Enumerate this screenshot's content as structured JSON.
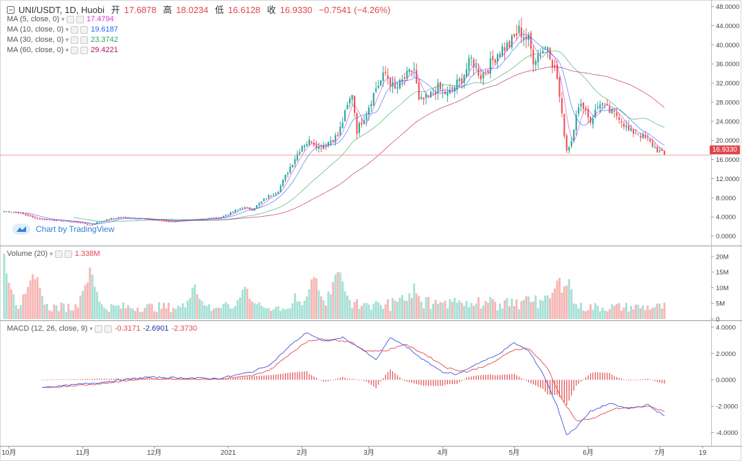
{
  "header": {
    "symbol": "UNI/USDT, 1D, Huobi",
    "open_label": "开",
    "open": "17.6878",
    "high_label": "高",
    "high": "18.0234",
    "low_label": "低",
    "low": "16.6128",
    "close_label": "收",
    "close": "16.9330",
    "change": "−0.7541 (−4.26%)"
  },
  "ma_legend": [
    {
      "label": "MA (5, close, 0)",
      "value": "17.4794",
      "color": "#d43ad1"
    },
    {
      "label": "MA (10, close, 0)",
      "value": "19.6187",
      "color": "#2962ff"
    },
    {
      "label": "MA (30, close, 0)",
      "value": "23.3742",
      "color": "#26a65b"
    },
    {
      "label": "MA (60, close, 0)",
      "value": "29.4221",
      "color": "#b0125e"
    }
  ],
  "volume_legend": {
    "label": "Volume (20)",
    "value": "1.338M",
    "color": "#e0474c"
  },
  "macd_legend": {
    "label": "MACD (12, 26, close, 9)",
    "values": [
      "-0.3171",
      "-2.6901",
      "-2.3730"
    ],
    "colors": [
      "#e0474c",
      "#2233aa",
      "#e0474c"
    ]
  },
  "watermark": "Chart by TradingView",
  "last_price_tag": "16.9330",
  "colors": {
    "up": "#26a69a",
    "down": "#ef5350",
    "vol_up": "#a7e0d6",
    "vol_down": "#f5b7b5",
    "macd_line": "#3f51d8",
    "signal_line": "#e0474c",
    "hist": "#e0474c",
    "price_line": "#e88c8f"
  },
  "chart_data": [
    {
      "type": "candlestick",
      "title": "UNI/USDT, 1D, Huobi",
      "y_ticks": [
        "48.0000",
        "44.0000",
        "40.0000",
        "36.0000",
        "32.0000",
        "28.0000",
        "24.0000",
        "20.0000",
        "16.0000",
        "12.0000",
        "8.0000",
        "4.0000",
        "0.0000"
      ],
      "ylim": [
        -2,
        48.8
      ],
      "x_ticks": [
        "10月",
        "11月",
        "12月",
        "2021",
        "2月",
        "3月",
        "4月",
        "5月",
        "6月",
        "7月",
        "19"
      ],
      "x_ticks_day_index": [
        2,
        33,
        63,
        94,
        125,
        153,
        184,
        214,
        245,
        275,
        293
      ],
      "last_close": 16.933,
      "close_keypoints": [
        [
          0,
          5.2
        ],
        [
          6,
          4.9
        ],
        [
          14,
          3.6
        ],
        [
          24,
          3.2
        ],
        [
          33,
          2.7
        ],
        [
          36,
          2.2
        ],
        [
          40,
          3.1
        ],
        [
          48,
          3.9
        ],
        [
          58,
          3.6
        ],
        [
          70,
          3.0
        ],
        [
          82,
          3.6
        ],
        [
          90,
          3.8
        ],
        [
          95,
          4.8
        ],
        [
          100,
          6.0
        ],
        [
          104,
          5.5
        ],
        [
          110,
          8.0
        ],
        [
          115,
          9.5
        ],
        [
          120,
          14.5
        ],
        [
          125,
          19.0
        ],
        [
          129,
          20.0
        ],
        [
          132,
          18.5
        ],
        [
          140,
          21.0
        ],
        [
          144,
          27.0
        ],
        [
          146,
          30.0
        ],
        [
          148,
          22.0
        ],
        [
          152,
          26.0
        ],
        [
          156,
          31.0
        ],
        [
          160,
          34.0
        ],
        [
          164,
          30.5
        ],
        [
          168,
          33.0
        ],
        [
          172,
          35.0
        ],
        [
          174,
          28.0
        ],
        [
          178,
          29.0
        ],
        [
          182,
          31.0
        ],
        [
          186,
          29.5
        ],
        [
          192,
          33.0
        ],
        [
          196,
          37.0
        ],
        [
          200,
          33.5
        ],
        [
          204,
          36.0
        ],
        [
          208,
          39.0
        ],
        [
          212,
          40.0
        ],
        [
          216,
          43.0
        ],
        [
          220,
          41.0
        ],
        [
          222,
          37.0
        ],
        [
          228,
          40.0
        ],
        [
          232,
          33.0
        ],
        [
          234,
          25.0
        ],
        [
          236,
          18.0
        ],
        [
          238,
          20.0
        ],
        [
          240,
          26.0
        ],
        [
          243,
          27.5
        ],
        [
          246,
          24.0
        ],
        [
          250,
          28.0
        ],
        [
          254,
          26.0
        ],
        [
          258,
          25.0
        ],
        [
          262,
          22.0
        ],
        [
          266,
          21.5
        ],
        [
          270,
          20.0
        ],
        [
          274,
          18.0
        ],
        [
          277,
          16.9
        ]
      ]
    },
    {
      "type": "bar",
      "title": "Volume (20)",
      "y_ticks": [
        "20M",
        "15M",
        "10M",
        "5M",
        "0"
      ],
      "ylim": [
        0,
        21.5
      ],
      "unit": "M",
      "peak_days": [
        [
          0,
          21
        ],
        [
          12,
          19
        ],
        [
          36,
          18
        ],
        [
          80,
          12
        ],
        [
          101,
          12
        ],
        [
          130,
          13
        ],
        [
          140,
          16
        ],
        [
          172,
          9
        ],
        [
          232,
          13
        ],
        [
          236,
          12
        ]
      ]
    },
    {
      "type": "line",
      "title": "MACD (12, 26, close, 9)",
      "y_ticks": [
        "4.0000",
        "2.0000",
        "0.0000",
        "-2.0000",
        "-4.0000"
      ],
      "ylim": [
        -4.6,
        4.2
      ],
      "macd_keypoints": [
        [
          16,
          -0.6
        ],
        [
          40,
          -0.2
        ],
        [
          60,
          0.2
        ],
        [
          90,
          0.1
        ],
        [
          104,
          0.6
        ],
        [
          112,
          1.2
        ],
        [
          120,
          2.6
        ],
        [
          127,
          3.6
        ],
        [
          134,
          2.9
        ],
        [
          142,
          3.2
        ],
        [
          148,
          2.6
        ],
        [
          156,
          1.5
        ],
        [
          162,
          3.2
        ],
        [
          168,
          2.6
        ],
        [
          176,
          1.5
        ],
        [
          184,
          0.6
        ],
        [
          190,
          0.4
        ],
        [
          198,
          1.2
        ],
        [
          206,
          1.8
        ],
        [
          214,
          2.8
        ],
        [
          220,
          2.2
        ],
        [
          226,
          0.5
        ],
        [
          232,
          -2.0
        ],
        [
          236,
          -4.2
        ],
        [
          240,
          -3.6
        ],
        [
          246,
          -2.4
        ],
        [
          254,
          -1.8
        ],
        [
          262,
          -2.2
        ],
        [
          270,
          -1.9
        ],
        [
          274,
          -2.4
        ],
        [
          277,
          -2.69
        ]
      ],
      "signal_keypoints": [
        [
          16,
          -0.6
        ],
        [
          40,
          -0.3
        ],
        [
          60,
          0.1
        ],
        [
          90,
          0.05
        ],
        [
          104,
          0.3
        ],
        [
          112,
          0.8
        ],
        [
          120,
          2.0
        ],
        [
          128,
          3.0
        ],
        [
          136,
          3.1
        ],
        [
          144,
          2.9
        ],
        [
          152,
          2.2
        ],
        [
          160,
          2.2
        ],
        [
          168,
          2.7
        ],
        [
          176,
          2.0
        ],
        [
          186,
          0.9
        ],
        [
          194,
          0.6
        ],
        [
          204,
          1.2
        ],
        [
          214,
          2.3
        ],
        [
          220,
          2.4
        ],
        [
          228,
          0.9
        ],
        [
          234,
          -1.5
        ],
        [
          240,
          -3.1
        ],
        [
          248,
          -2.9
        ],
        [
          256,
          -2.2
        ],
        [
          264,
          -2.1
        ],
        [
          270,
          -2.0
        ],
        [
          277,
          -2.37
        ]
      ]
    }
  ]
}
